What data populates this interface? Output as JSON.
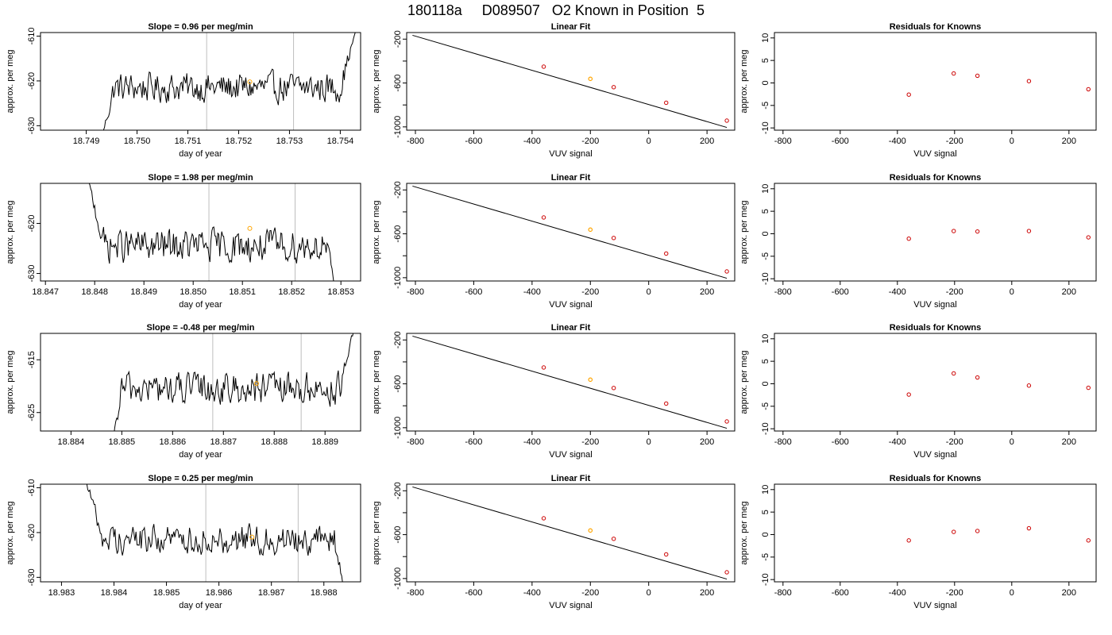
{
  "page_title": "180118a     D089507   O2 Known in Position  5",
  "colors": {
    "line": "#000000",
    "frame": "#000000",
    "vline": "#bebebe",
    "marker": "#ffa500",
    "residual_point": "#cc0000"
  },
  "chart_data": [
    {
      "type": "line",
      "panel": "timeseries",
      "title": "Slope =  0.96  per meg/min",
      "xlabel": "day of year",
      "ylabel": "approx. per meg",
      "xlim": [
        18.7481,
        18.7544
      ],
      "ylim": [
        -631,
        -609.2
      ],
      "xticks": [
        18.749,
        18.75,
        18.751,
        18.752,
        18.753,
        18.754
      ],
      "xtick_labels": [
        "18.749",
        "18.750",
        "18.751",
        "18.752",
        "18.753",
        "18.754"
      ],
      "yticks": [
        -610,
        -620,
        -630
      ],
      "ytick_labels": [
        "-610",
        "-620",
        "-630"
      ],
      "vlines": [
        18.75137,
        18.75308
      ],
      "series_start": 18.7493,
      "series_end": 18.7543,
      "series_step": 2e-05,
      "base": -621.5,
      "noise": 1.6,
      "head": {
        "from": -633,
        "len": 0.00025
      },
      "tail": {
        "to": -609,
        "len": 0.0003
      },
      "marker": {
        "x": 18.75222,
        "y": -620.2
      }
    },
    {
      "type": "line",
      "panel": "fit",
      "title": "Linear Fit",
      "xlabel": "VUV signal",
      "ylabel": "approx. per meg",
      "xlim": [
        -830,
        295
      ],
      "ylim": [
        -1030,
        -140
      ],
      "xticks": [
        -800,
        -600,
        -400,
        -200,
        0,
        200
      ],
      "xtick_labels": [
        "-800",
        "-600",
        "-400",
        "-200",
        "0",
        "200"
      ],
      "yticks": [
        -200,
        -600,
        -1000
      ],
      "ytick_labels": [
        "-200",
        "-600",
        "-1000"
      ],
      "minor_yticks": [
        -400,
        -800
      ],
      "line": {
        "x": [
          -810,
          268
        ],
        "y": [
          -165,
          -1005
        ]
      },
      "points": [
        {
          "x": -360,
          "y": -451
        },
        {
          "x": -120,
          "y": -638
        },
        {
          "x": 60,
          "y": -780
        },
        {
          "x": 268,
          "y": -943
        }
      ],
      "highlight": {
        "x": -200,
        "y": -562
      }
    },
    {
      "type": "scatter",
      "panel": "residuals",
      "title": "Residuals for Knowns",
      "xlabel": "VUV signal",
      "ylabel": "approx. per meg",
      "xlim": [
        -830,
        295
      ],
      "ylim": [
        -10.5,
        11.2
      ],
      "xticks": [
        -800,
        -600,
        -400,
        -200,
        0,
        200
      ],
      "xtick_labels": [
        "-800",
        "-600",
        "-400",
        "-200",
        "0",
        "200"
      ],
      "yticks": [
        10,
        5,
        0,
        -5,
        -10
      ],
      "ytick_labels": [
        "10",
        "5",
        "0",
        "-5",
        "-10"
      ],
      "points": [
        {
          "x": -360,
          "y": -2.6
        },
        {
          "x": -203,
          "y": 2.1
        },
        {
          "x": -120,
          "y": 1.6
        },
        {
          "x": 60,
          "y": 0.4
        },
        {
          "x": 268,
          "y": -1.4
        }
      ]
    },
    {
      "type": "line",
      "panel": "timeseries",
      "title": "Slope =  1.98  per meg/min",
      "xlabel": "day of year",
      "ylabel": "approx. per meg",
      "xlim": [
        18.8469,
        18.8534
      ],
      "ylim": [
        -631.5,
        -612
      ],
      "xticks": [
        18.847,
        18.848,
        18.849,
        18.85,
        18.851,
        18.852,
        18.853
      ],
      "xtick_labels": [
        "18.847",
        "18.848",
        "18.849",
        "18.850",
        "18.851",
        "18.852",
        "18.853"
      ],
      "yticks": [
        -620,
        -630
      ],
      "ytick_labels": [
        "-620",
        "-630"
      ],
      "vlines": [
        18.85032,
        18.85207
      ],
      "series_start": 18.8478,
      "series_end": 18.8529,
      "series_step": 2e-05,
      "base": -624.5,
      "noise": 1.6,
      "head": {
        "from": -609,
        "len": 0.0004
      },
      "tail": {
        "to": -634,
        "len": 0.0002
      },
      "marker": {
        "x": 18.85115,
        "y": -621
      }
    },
    {
      "type": "line",
      "panel": "fit",
      "title": "Linear Fit",
      "xlabel": "VUV signal",
      "ylabel": "approx. per meg",
      "xlim": [
        -830,
        295
      ],
      "ylim": [
        -1030,
        -140
      ],
      "xticks": [
        -800,
        -600,
        -400,
        -200,
        0,
        200
      ],
      "xtick_labels": [
        "-800",
        "-600",
        "-400",
        "-200",
        "0",
        "200"
      ],
      "yticks": [
        -200,
        -600,
        -1000
      ],
      "ytick_labels": [
        "-200",
        "-600",
        "-1000"
      ],
      "minor_yticks": [
        -400,
        -800
      ],
      "line": {
        "x": [
          -810,
          268
        ],
        "y": [
          -165,
          -1005
        ]
      },
      "points": [
        {
          "x": -360,
          "y": -451
        },
        {
          "x": -120,
          "y": -638
        },
        {
          "x": 60,
          "y": -780
        },
        {
          "x": 268,
          "y": -943
        }
      ],
      "highlight": {
        "x": -200,
        "y": -562
      }
    },
    {
      "type": "scatter",
      "panel": "residuals",
      "title": "Residuals for Knowns",
      "xlabel": "VUV signal",
      "ylabel": "approx. per meg",
      "xlim": [
        -830,
        295
      ],
      "ylim": [
        -10.5,
        11.2
      ],
      "xticks": [
        -800,
        -600,
        -400,
        -200,
        0,
        200
      ],
      "xtick_labels": [
        "-800",
        "-600",
        "-400",
        "-200",
        "0",
        "200"
      ],
      "yticks": [
        10,
        5,
        0,
        -5,
        -10
      ],
      "ytick_labels": [
        "10",
        "5",
        "0",
        "-5",
        "-10"
      ],
      "points": [
        {
          "x": -360,
          "y": -1.1
        },
        {
          "x": -203,
          "y": 0.6
        },
        {
          "x": -120,
          "y": 0.5
        },
        {
          "x": 60,
          "y": 0.6
        },
        {
          "x": 268,
          "y": -0.8
        }
      ]
    },
    {
      "type": "line",
      "panel": "timeseries",
      "title": "Slope =  -0.48  per meg/min",
      "xlabel": "day of year",
      "ylabel": "approx. per meg",
      "xlim": [
        18.8834,
        18.8897
      ],
      "ylim": [
        -628.5,
        -610
      ],
      "xticks": [
        18.884,
        18.885,
        18.886,
        18.887,
        18.888,
        18.889
      ],
      "xtick_labels": [
        "18.884",
        "18.885",
        "18.886",
        "18.887",
        "18.888",
        "18.889"
      ],
      "yticks": [
        -615,
        -625
      ],
      "ytick_labels": [
        "-615",
        "-625"
      ],
      "vlines": [
        18.88679,
        18.88853
      ],
      "series_start": 18.8848,
      "series_end": 18.8896,
      "series_step": 2e-05,
      "base": -620.5,
      "noise": 1.5,
      "head": {
        "from": -632,
        "len": 0.0002
      },
      "tail": {
        "to": -608,
        "len": 0.0003
      },
      "marker": {
        "x": 18.88765,
        "y": -619.5
      }
    },
    {
      "type": "line",
      "panel": "fit",
      "title": "Linear Fit",
      "xlabel": "VUV signal",
      "ylabel": "approx. per meg",
      "xlim": [
        -830,
        295
      ],
      "ylim": [
        -1030,
        -140
      ],
      "xticks": [
        -800,
        -600,
        -400,
        -200,
        0,
        200
      ],
      "xtick_labels": [
        "-800",
        "-600",
        "-400",
        "-200",
        "0",
        "200"
      ],
      "yticks": [
        -200,
        -600,
        -1000
      ],
      "ytick_labels": [
        "-200",
        "-600",
        "-1000"
      ],
      "minor_yticks": [
        -400,
        -800
      ],
      "line": {
        "x": [
          -810,
          268
        ],
        "y": [
          -165,
          -1005
        ]
      },
      "points": [
        {
          "x": -360,
          "y": -451
        },
        {
          "x": -120,
          "y": -638
        },
        {
          "x": 60,
          "y": -780
        },
        {
          "x": 268,
          "y": -943
        }
      ],
      "highlight": {
        "x": -200,
        "y": -562
      }
    },
    {
      "type": "scatter",
      "panel": "residuals",
      "title": "Residuals for Knowns",
      "xlabel": "VUV signal",
      "ylabel": "approx. per meg",
      "xlim": [
        -830,
        295
      ],
      "ylim": [
        -10.5,
        11.2
      ],
      "xticks": [
        -800,
        -600,
        -400,
        -200,
        0,
        200
      ],
      "xtick_labels": [
        "-800",
        "-600",
        "-400",
        "-200",
        "0",
        "200"
      ],
      "yticks": [
        10,
        5,
        0,
        -5,
        -10
      ],
      "ytick_labels": [
        "10",
        "5",
        "0",
        "-5",
        "-10"
      ],
      "points": [
        {
          "x": -360,
          "y": -2.4
        },
        {
          "x": -203,
          "y": 2.3
        },
        {
          "x": -120,
          "y": 1.4
        },
        {
          "x": 60,
          "y": -0.4
        },
        {
          "x": 268,
          "y": -0.9
        }
      ]
    },
    {
      "type": "line",
      "panel": "timeseries",
      "title": "Slope =  0.25  per meg/min",
      "xlabel": "day of year",
      "ylabel": "approx. per meg",
      "xlim": [
        18.9826,
        18.9887
      ],
      "ylim": [
        -631,
        -609.2
      ],
      "xticks": [
        18.983,
        18.984,
        18.985,
        18.986,
        18.987,
        18.988
      ],
      "xtick_labels": [
        "18.983",
        "18.984",
        "18.985",
        "18.986",
        "18.987",
        "18.988"
      ],
      "yticks": [
        -610,
        -620,
        -630
      ],
      "ytick_labels": [
        "-610",
        "-620",
        "-630"
      ],
      "vlines": [
        18.98575,
        18.98751
      ],
      "series_start": 18.9834,
      "series_end": 18.9884,
      "series_step": 2e-05,
      "base": -621.5,
      "noise": 1.6,
      "head": {
        "from": -606,
        "len": 0.0004
      },
      "tail": {
        "to": -634,
        "len": 0.0002
      },
      "marker": {
        "x": 18.98663,
        "y": -621
      }
    },
    {
      "type": "line",
      "panel": "fit",
      "title": "Linear Fit",
      "xlabel": "VUV signal",
      "ylabel": "approx. per meg",
      "xlim": [
        -830,
        295
      ],
      "ylim": [
        -1030,
        -140
      ],
      "xticks": [
        -800,
        -600,
        -400,
        -200,
        0,
        200
      ],
      "xtick_labels": [
        "-800",
        "-600",
        "-400",
        "-200",
        "0",
        "200"
      ],
      "yticks": [
        -200,
        -600,
        -1000
      ],
      "ytick_labels": [
        "-200",
        "-600",
        "-1000"
      ],
      "minor_yticks": [
        -400,
        -800
      ],
      "line": {
        "x": [
          -810,
          268
        ],
        "y": [
          -165,
          -1005
        ]
      },
      "points": [
        {
          "x": -360,
          "y": -451
        },
        {
          "x": -120,
          "y": -638
        },
        {
          "x": 60,
          "y": -780
        },
        {
          "x": 268,
          "y": -943
        }
      ],
      "highlight": {
        "x": -200,
        "y": -562
      }
    },
    {
      "type": "scatter",
      "panel": "residuals",
      "title": "Residuals for Knowns",
      "xlabel": "VUV signal",
      "ylabel": "approx. per meg",
      "xlim": [
        -830,
        295
      ],
      "ylim": [
        -10.5,
        11.2
      ],
      "xticks": [
        -800,
        -600,
        -400,
        -200,
        0,
        200
      ],
      "xtick_labels": [
        "-800",
        "-600",
        "-400",
        "-200",
        "0",
        "200"
      ],
      "yticks": [
        10,
        5,
        0,
        -5,
        -10
      ],
      "ytick_labels": [
        "10",
        "5",
        "0",
        "-5",
        "-10"
      ],
      "points": [
        {
          "x": -360,
          "y": -1.3
        },
        {
          "x": -203,
          "y": 0.6
        },
        {
          "x": -120,
          "y": 0.8
        },
        {
          "x": 60,
          "y": 1.4
        },
        {
          "x": 268,
          "y": -1.3
        }
      ]
    }
  ]
}
